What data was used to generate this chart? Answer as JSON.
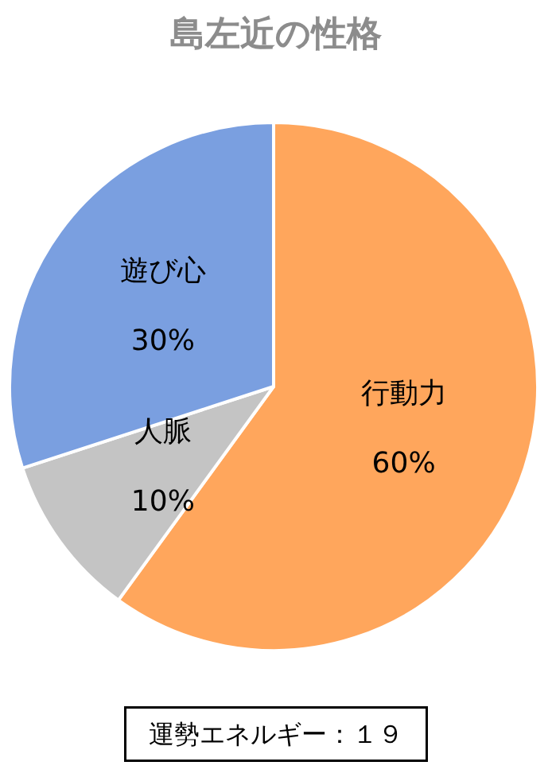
{
  "chart_data": {
    "type": "pie",
    "title": "島左近の性格",
    "categories": [
      "行動力",
      "人脈",
      "遊び心"
    ],
    "values": [
      60,
      10,
      30
    ],
    "colors": [
      "#ffa65c",
      "#c4c4c4",
      "#7a9fe0"
    ],
    "value_labels": [
      "60%",
      "10%",
      "30%"
    ],
    "annotations": [
      "運勢エネルギー：１９"
    ]
  }
}
